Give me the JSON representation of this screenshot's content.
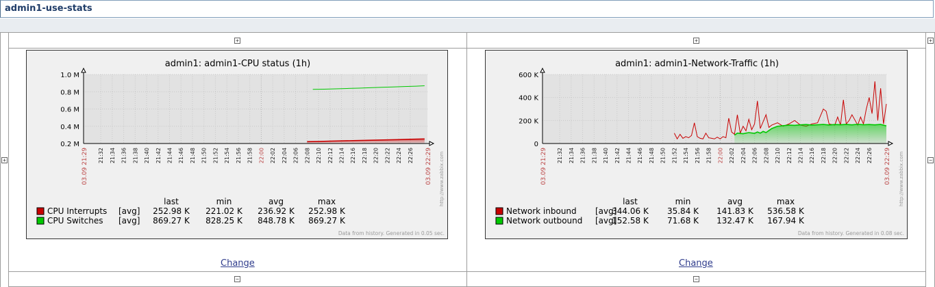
{
  "page": {
    "title": "admin1-use-stats"
  },
  "controls": {
    "plus": "+",
    "minus": "−"
  },
  "widgets": [
    {
      "change_label": "Change",
      "chart_data": {
        "type": "line",
        "title": "admin1: admin1-CPU status (1h)",
        "y_ticks": [
          "1.0 M",
          "0.8 M",
          "0.6 M",
          "0.4 M",
          "0.2 M"
        ],
        "ylim": [
          0.2,
          1.0
        ],
        "x_start_label": "03.09 21:29",
        "x_end_label": "03.09 22:29",
        "x_ticks": [
          "21:32",
          "21:34",
          "21:36",
          "21:38",
          "21:40",
          "21:42",
          "21:44",
          "21:46",
          "21:48",
          "21:50",
          "21:52",
          "21:54",
          "21:56",
          "21:58",
          "22:00",
          "22:02",
          "22:04",
          "22:06",
          "22:08",
          "22:10",
          "22:12",
          "22:14",
          "22:16",
          "22:18",
          "22:20",
          "22:22",
          "22:24",
          "22:26"
        ],
        "x_highlight": "22:00",
        "grid": true,
        "legend_headers": [
          "last",
          "min",
          "avg",
          "max"
        ],
        "series": [
          {
            "name": "CPU Interrupts",
            "func": "[avg]",
            "last": "252.98 K",
            "min": "221.02 K",
            "avg": "236.92 K",
            "max": "252.98 K",
            "color": "#c80000",
            "fill": true,
            "points": [
              [
                22.08,
                0.221
              ],
              [
                22.1,
                0.223
              ],
              [
                22.12,
                0.227
              ],
              [
                22.14,
                0.23
              ],
              [
                22.16,
                0.233
              ],
              [
                22.18,
                0.236
              ],
              [
                22.2,
                0.239
              ],
              [
                22.22,
                0.242
              ],
              [
                22.24,
                0.245
              ],
              [
                22.26,
                0.249
              ],
              [
                22.285,
                0.253
              ]
            ]
          },
          {
            "name": "CPU Switches",
            "func": "[avg]",
            "last": "869.27 K",
            "min": "828.25 K",
            "avg": "848.78 K",
            "max": "869.27 K",
            "color": "#00c800",
            "fill": false,
            "points": [
              [
                22.09,
                0.828
              ],
              [
                22.11,
                0.83
              ],
              [
                22.13,
                0.834
              ],
              [
                22.15,
                0.838
              ],
              [
                22.17,
                0.842
              ],
              [
                22.19,
                0.847
              ],
              [
                22.21,
                0.851
              ],
              [
                22.23,
                0.855
              ],
              [
                22.25,
                0.86
              ],
              [
                22.27,
                0.864
              ],
              [
                22.285,
                0.869
              ]
            ]
          }
        ],
        "watermark": "http://www.zabbix.com",
        "footer": "Data from history. Generated in 0.05 sec."
      }
    },
    {
      "change_label": "Change",
      "chart_data": {
        "type": "line",
        "title": "admin1: admin1-Network-Traffic (1h)",
        "y_ticks": [
          "600 K",
          "400 K",
          "200 K",
          "0"
        ],
        "ylim": [
          0,
          600
        ],
        "x_start_label": "03.09 21:29",
        "x_end_label": "03.09 22:29",
        "x_ticks": [
          "21:32",
          "21:34",
          "21:36",
          "21:38",
          "21:40",
          "21:42",
          "21:44",
          "21:46",
          "21:48",
          "21:50",
          "21:52",
          "21:54",
          "21:56",
          "21:58",
          "22:00",
          "22:02",
          "22:04",
          "22:06",
          "22:08",
          "22:10",
          "22:12",
          "22:14",
          "22:16",
          "22:18",
          "22:20",
          "22:22",
          "22:24",
          "22:26"
        ],
        "x_highlight": "22:00",
        "grid": true,
        "legend_headers": [
          "last",
          "min",
          "avg",
          "max"
        ],
        "series": [
          {
            "name": "Network inbound",
            "func": "[avg]",
            "last": "344.06 K",
            "min": "35.84 K",
            "avg": "141.83 K",
            "max": "536.58 K",
            "color": "#c80000",
            "fill": false,
            "points": [
              [
                21.52,
                90
              ],
              [
                21.525,
                40
              ],
              [
                21.53,
                80
              ],
              [
                21.535,
                45
              ],
              [
                21.54,
                60
              ],
              [
                21.545,
                50
              ],
              [
                21.55,
                70
              ],
              [
                21.555,
                180
              ],
              [
                21.56,
                60
              ],
              [
                21.565,
                45
              ],
              [
                21.57,
                40
              ],
              [
                21.575,
                90
              ],
              [
                21.58,
                50
              ],
              [
                21.585,
                45
              ],
              [
                21.59,
                40
              ],
              [
                21.595,
                55
              ],
              [
                22.0,
                40
              ],
              [
                22.005,
                60
              ],
              [
                22.01,
                50
              ],
              [
                22.015,
                220
              ],
              [
                22.02,
                100
              ],
              [
                22.025,
                80
              ],
              [
                22.03,
                250
              ],
              [
                22.035,
                90
              ],
              [
                22.04,
                150
              ],
              [
                22.045,
                110
              ],
              [
                22.05,
                210
              ],
              [
                22.055,
                120
              ],
              [
                22.06,
                170
              ],
              [
                22.065,
                370
              ],
              [
                22.07,
                130
              ],
              [
                22.075,
                190
              ],
              [
                22.08,
                250
              ],
              [
                22.085,
                140
              ],
              [
                22.09,
                160
              ],
              [
                22.1,
                180
              ],
              [
                22.11,
                150
              ],
              [
                22.12,
                170
              ],
              [
                22.13,
                200
              ],
              [
                22.14,
                160
              ],
              [
                22.15,
                150
              ],
              [
                22.16,
                170
              ],
              [
                22.17,
                180
              ],
              [
                22.175,
                240
              ],
              [
                22.18,
                300
              ],
              [
                22.185,
                280
              ],
              [
                22.19,
                170
              ],
              [
                22.2,
                160
              ],
              [
                22.205,
                230
              ],
              [
                22.21,
                160
              ],
              [
                22.215,
                380
              ],
              [
                22.22,
                170
              ],
              [
                22.225,
                200
              ],
              [
                22.23,
                250
              ],
              [
                22.24,
                160
              ],
              [
                22.245,
                230
              ],
              [
                22.25,
                170
              ],
              [
                22.255,
                300
              ],
              [
                22.26,
                400
              ],
              [
                22.265,
                260
              ],
              [
                22.27,
                540
              ],
              [
                22.275,
                200
              ],
              [
                22.28,
                480
              ],
              [
                22.285,
                170
              ],
              [
                22.29,
                344
              ]
            ]
          },
          {
            "name": "Network outbound",
            "func": "[avg]",
            "last": "152.58 K",
            "min": "71.68 K",
            "avg": "132.47 K",
            "max": "167.94 K",
            "color": "#00c800",
            "fill": true,
            "points": [
              [
                22.025,
                72
              ],
              [
                22.03,
                90
              ],
              [
                22.04,
                85
              ],
              [
                22.05,
                95
              ],
              [
                22.06,
                88
              ],
              [
                22.065,
                100
              ],
              [
                22.07,
                90
              ],
              [
                22.075,
                105
              ],
              [
                22.08,
                95
              ],
              [
                22.09,
                130
              ],
              [
                22.1,
                150
              ],
              [
                22.11,
                155
              ],
              [
                22.12,
                160
              ],
              [
                22.13,
                158
              ],
              [
                22.14,
                162
              ],
              [
                22.15,
                165
              ],
              [
                22.16,
                160
              ],
              [
                22.17,
                163
              ],
              [
                22.18,
                166
              ],
              [
                22.19,
                161
              ],
              [
                22.2,
                165
              ],
              [
                22.21,
                163
              ],
              [
                22.22,
                166
              ],
              [
                22.23,
                162
              ],
              [
                22.24,
                167
              ],
              [
                22.25,
                163
              ],
              [
                22.26,
                165
              ],
              [
                22.27,
                162
              ],
              [
                22.28,
                166
              ],
              [
                22.29,
                153
              ]
            ]
          }
        ],
        "watermark": "http://www.zabbix.com",
        "footer": "Data from history. Generated in 0.08 sec."
      }
    }
  ]
}
